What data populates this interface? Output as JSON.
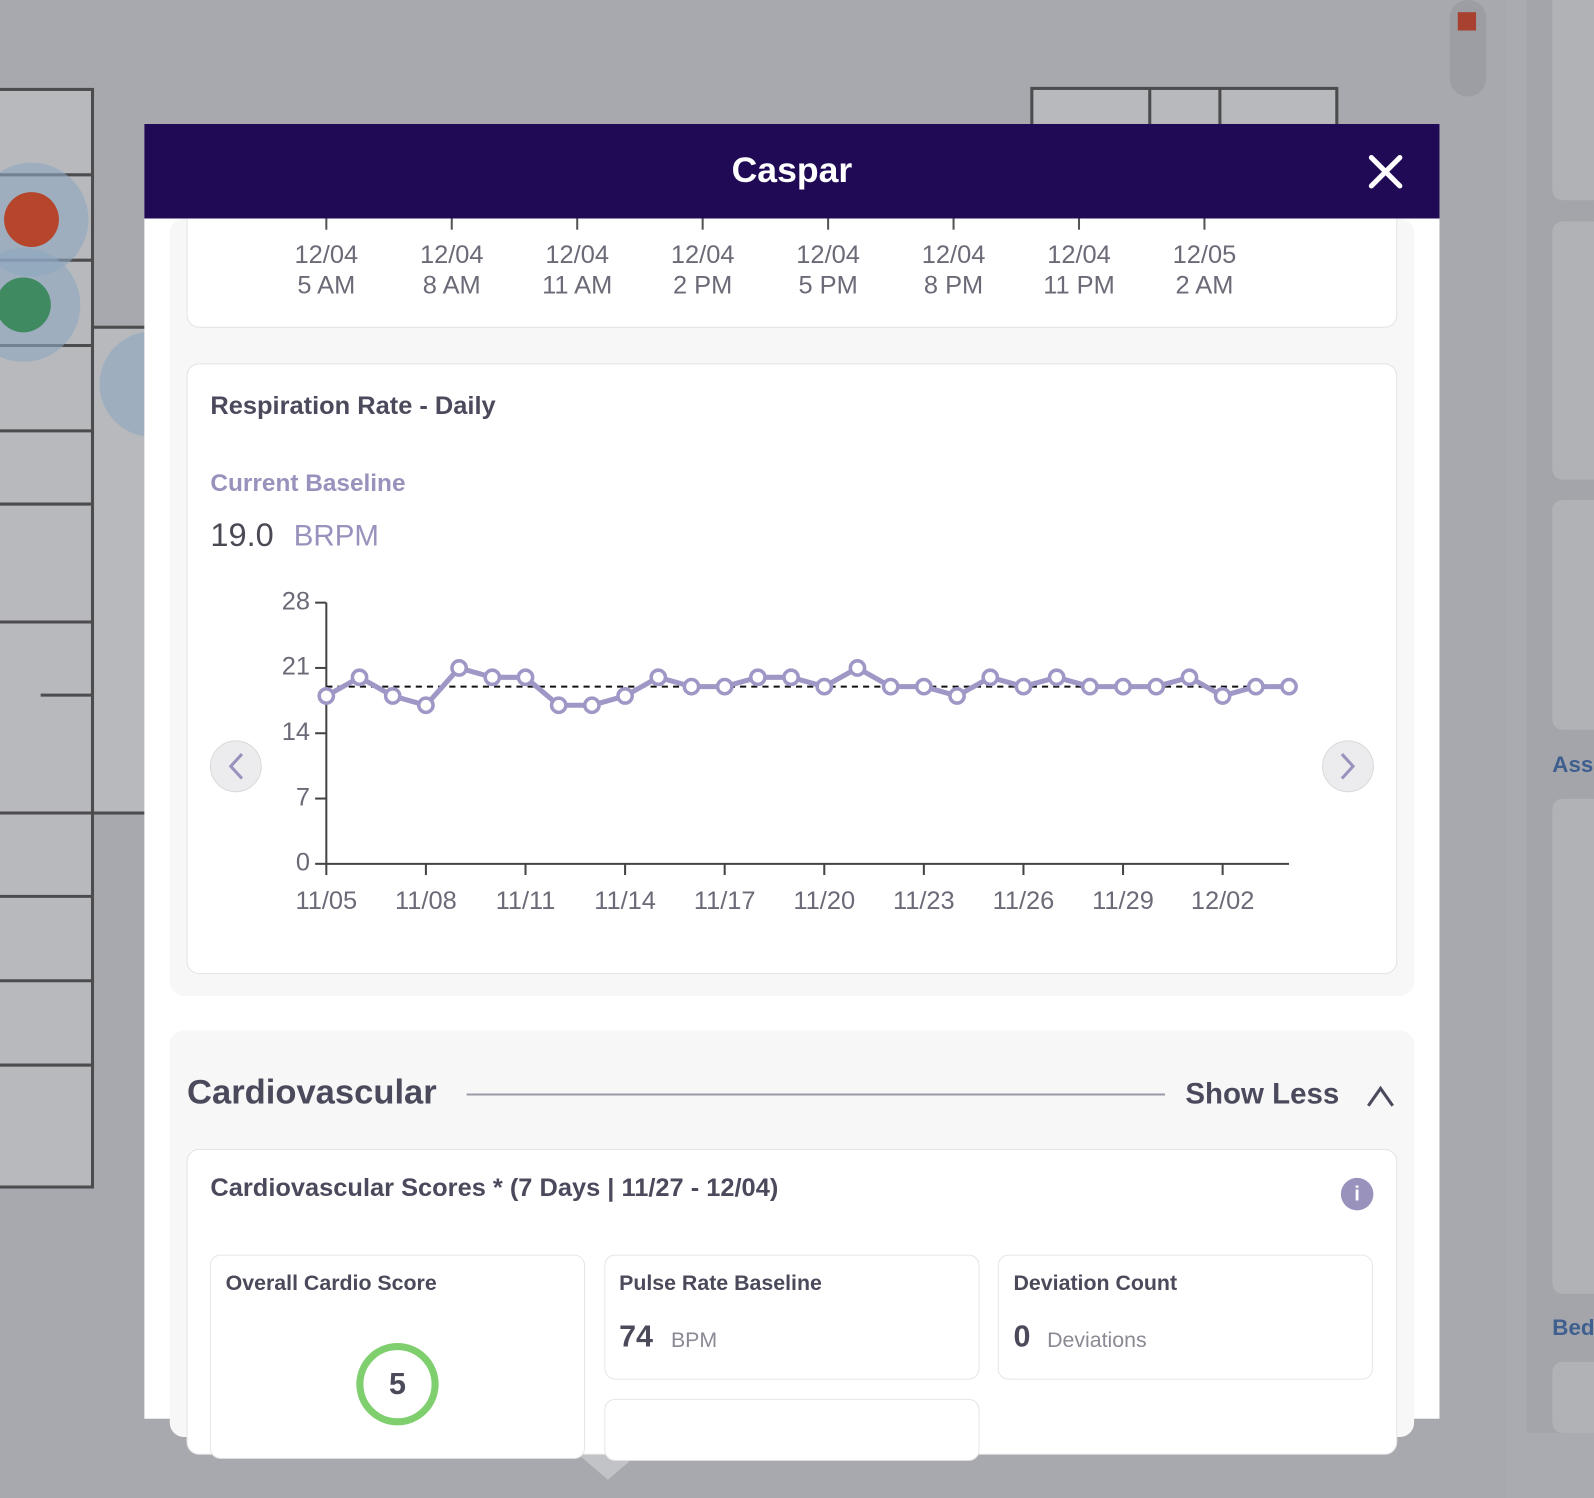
{
  "header": {
    "title": "Caspar"
  },
  "top_chart_labels": [
    [
      "12/04",
      "5 AM"
    ],
    [
      "12/04",
      "8 AM"
    ],
    [
      "12/04",
      "11 AM"
    ],
    [
      "12/04",
      "2 PM"
    ],
    [
      "12/04",
      "5 PM"
    ],
    [
      "12/04",
      "8 PM"
    ],
    [
      "12/04",
      "11 PM"
    ],
    [
      "12/05",
      "2 AM"
    ]
  ],
  "respiration_card": {
    "title": "Respiration Rate - Daily",
    "baseline_label": "Current Baseline",
    "baseline_value": "19.0",
    "baseline_unit": "BRPM"
  },
  "chart_data": {
    "type": "line",
    "categories": [
      "11/05",
      null,
      null,
      "11/08",
      null,
      null,
      "11/11",
      null,
      null,
      "11/14",
      null,
      null,
      "11/17",
      null,
      null,
      "11/20",
      null,
      null,
      "11/23",
      null,
      null,
      "11/26",
      null,
      null,
      "11/29",
      null,
      null,
      "12/02",
      null,
      null
    ],
    "series": [
      {
        "name": "Respiration Rate",
        "color": "#9f97c6",
        "values": [
          18,
          20,
          18,
          17,
          21,
          20,
          20,
          17,
          17,
          18,
          20,
          19,
          19,
          20,
          20,
          19,
          21,
          19,
          19,
          18,
          20,
          19,
          20,
          19,
          19,
          19,
          20,
          18,
          19,
          19
        ]
      }
    ],
    "reference_line": 19,
    "ylim": [
      0,
      28
    ],
    "yticks": [
      0,
      7,
      14,
      21,
      28
    ],
    "grid": false
  },
  "cardio_section": {
    "title": "Cardiovascular",
    "toggle": "Show Less",
    "card_title": "Cardiovascular Scores * (7 Days | 11/27 - 12/04)",
    "boxes": [
      {
        "title": "Overall Cardio Score",
        "value": "5"
      },
      {
        "title": "Pulse Rate Baseline",
        "value": "74",
        "unit": "BPM"
      },
      {
        "title": "Deviation Count",
        "value": "0",
        "unit": "Deviations"
      }
    ]
  },
  "sidebar": {
    "labels": [
      "Ass",
      "Bed"
    ]
  }
}
